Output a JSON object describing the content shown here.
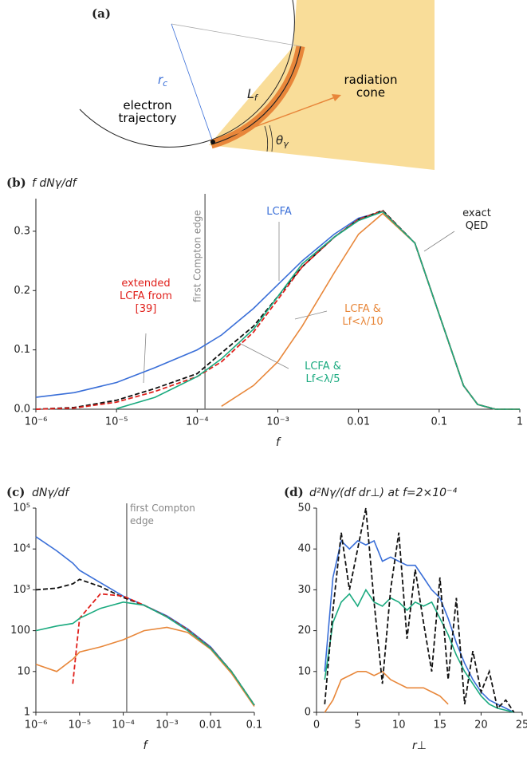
{
  "diagram": {
    "label": "(a)",
    "r_c": {
      "symbol": "r",
      "subscript": "c"
    },
    "L_f": {
      "symbol": "L",
      "subscript": "f"
    },
    "theta": {
      "symbol": "θ",
      "subscript": "γ"
    },
    "electron_trajectory": "electron trajectory",
    "radiation_cone": "radiation cone"
  },
  "chart_data": [
    {
      "type": "line",
      "panel_label": "(b)",
      "title": "f dNγ/df",
      "xlabel": "f",
      "xscale": "log",
      "yscale": "linear",
      "xlim": [
        1e-06,
        1
      ],
      "xticks": [
        {
          "value": 1e-06,
          "label": "10⁻⁶"
        },
        {
          "value": 1e-05,
          "label": "10⁻⁵"
        },
        {
          "value": 0.0001,
          "label": "10⁻⁴"
        },
        {
          "value": 0.001,
          "label": "10⁻³"
        },
        0.01,
        0.1,
        1
      ],
      "ylim": [
        0,
        0.355
      ],
      "yticks": [
        {
          "value": 0,
          "label": "0.0"
        },
        0.1,
        0.2,
        0.3
      ],
      "vline": {
        "x": 0.000125,
        "label": "first Compton edge"
      },
      "x": [
        1e-06,
        3e-06,
        1e-05,
        3e-05,
        0.0001,
        0.0002,
        0.0005,
        0.001,
        0.002,
        0.005,
        0.01,
        0.02,
        0.05,
        0.1,
        0.2,
        0.3,
        0.5,
        1
      ],
      "series": [
        {
          "name": "LCFA",
          "color": "#3a6fd8",
          "style": "solid",
          "values": [
            0.02,
            0.028,
            0.045,
            0.07,
            0.1,
            0.125,
            0.17,
            0.21,
            0.25,
            0.295,
            0.322,
            0.333,
            0.28,
            0.16,
            0.04,
            0.008,
            0,
            0
          ]
        },
        {
          "name": "exact QED",
          "color": "#111111",
          "style": "dashed",
          "values": [
            0,
            0.003,
            0.015,
            0.035,
            0.06,
            0.095,
            0.14,
            0.19,
            0.24,
            0.29,
            0.32,
            0.335,
            0.28,
            0.16,
            0.04,
            0.008,
            0,
            0
          ]
        },
        {
          "name": "extended LCFA from [39]",
          "color": "#e0201b",
          "style": "dashed",
          "values": [
            0,
            0.002,
            0.012,
            0.03,
            0.055,
            0.08,
            0.13,
            0.185,
            0.24,
            0.29,
            0.32,
            0.334,
            0.28,
            0.16,
            0.04,
            0.008,
            0,
            0
          ]
        },
        {
          "name": "LCFA & Lf<λ/10",
          "color": "#e8873a",
          "style": "solid",
          "values": [
            null,
            null,
            null,
            null,
            null,
            0.005,
            0.04,
            0.08,
            0.14,
            0.23,
            0.295,
            0.33,
            0.28,
            0.16,
            0.04,
            0.008,
            0,
            0
          ]
        },
        {
          "name": "LCFA & Lf<λ/5",
          "color": "#1aaa7f",
          "style": "solid",
          "values": [
            null,
            null,
            0.001,
            0.02,
            0.055,
            0.085,
            0.135,
            0.19,
            0.245,
            0.29,
            0.318,
            0.333,
            0.28,
            0.16,
            0.04,
            0.008,
            0,
            0
          ]
        }
      ]
    },
    {
      "type": "line",
      "panel_label": "(c)",
      "title": "dNγ/df",
      "xlabel": "f",
      "xscale": "log",
      "yscale": "log",
      "xlim": [
        1e-06,
        0.1
      ],
      "xticks": [
        {
          "value": 1e-06,
          "label": "10⁻⁶"
        },
        {
          "value": 1e-05,
          "label": "10⁻⁵"
        },
        {
          "value": 0.0001,
          "label": "10⁻⁴"
        },
        {
          "value": 0.001,
          "label": "10⁻³"
        },
        0.01,
        0.1
      ],
      "ylim": [
        1,
        100000
      ],
      "yticks": [
        1,
        10,
        100,
        {
          "value": 1000,
          "label": "10³"
        },
        {
          "value": 10000,
          "label": "10⁴"
        },
        {
          "value": 100000,
          "label": "10⁵"
        }
      ],
      "vline": {
        "x": 0.00012,
        "label": "first Compton edge"
      },
      "x": [
        1e-06,
        3e-06,
        7e-06,
        1e-05,
        3e-05,
        0.0001,
        0.0003,
        0.001,
        0.003,
        0.01,
        0.03,
        0.1
      ],
      "series": [
        {
          "color": "#3a6fd8",
          "style": "solid",
          "values": [
            20000,
            9000,
            4500,
            3000,
            1500,
            700,
            420,
            230,
            110,
            40,
            10,
            1.5
          ]
        },
        {
          "color": "#111111",
          "style": "dashed",
          "values": [
            1000,
            1100,
            1400,
            1800,
            1200,
            650,
            420,
            220,
            105,
            38,
            10,
            1.5
          ]
        },
        {
          "color": "#e0201b",
          "style": "dashed",
          "values": [
            null,
            null,
            5,
            200,
            800,
            700,
            420,
            220,
            105,
            38,
            10,
            1.5
          ]
        },
        {
          "color": "#e8873a",
          "style": "solid",
          "values": [
            15,
            10,
            20,
            30,
            40,
            60,
            100,
            120,
            90,
            35,
            9,
            1.4
          ]
        },
        {
          "color": "#1aaa7f",
          "style": "solid",
          "values": [
            100,
            130,
            150,
            200,
            350,
            500,
            420,
            215,
            100,
            37,
            10,
            1.5
          ]
        }
      ]
    },
    {
      "type": "line",
      "panel_label": "(d)",
      "title": "d²Nγ/(df dr⊥) at f=2×10⁻⁴",
      "xlabel": "r⊥",
      "xscale": "linear",
      "yscale": "linear",
      "xlim": [
        0,
        25
      ],
      "xticks": [
        0,
        5,
        10,
        15,
        20,
        25
      ],
      "ylim": [
        0,
        50
      ],
      "yticks": [
        0,
        10,
        20,
        30,
        40,
        50
      ],
      "x": [
        1,
        2,
        3,
        4,
        5,
        6,
        7,
        8,
        9,
        10,
        11,
        12,
        13,
        14,
        15,
        16,
        17,
        18,
        19,
        20,
        21,
        22,
        23,
        24
      ],
      "series": [
        {
          "color": "#3a6fd8",
          "style": "solid",
          "values": [
            10,
            33,
            42,
            40,
            42,
            41,
            42,
            37,
            38,
            37,
            36,
            36,
            33,
            30,
            28,
            23,
            17,
            12,
            8,
            5,
            3,
            2,
            1,
            0
          ]
        },
        {
          "color": "#e8873a",
          "style": "solid",
          "values": [
            0,
            3,
            8,
            9,
            10,
            10,
            9,
            10,
            8,
            7,
            6,
            6,
            6,
            5,
            4,
            2,
            null,
            null,
            null,
            null,
            null,
            null,
            null,
            null
          ]
        },
        {
          "color": "#1aaa7f",
          "style": "solid",
          "values": [
            8,
            22,
            27,
            29,
            26,
            30,
            27,
            26,
            28,
            27,
            25,
            27,
            26,
            27,
            23,
            19,
            14,
            10,
            7,
            4,
            2,
            1,
            0.5,
            0
          ]
        },
        {
          "color": "#111111",
          "style": "dashed",
          "values": [
            2,
            25,
            44,
            30,
            40,
            50,
            27,
            7,
            30,
            44,
            18,
            35,
            22,
            10,
            33,
            8,
            28,
            2,
            15,
            5,
            10,
            1,
            3,
            0
          ]
        }
      ]
    }
  ]
}
